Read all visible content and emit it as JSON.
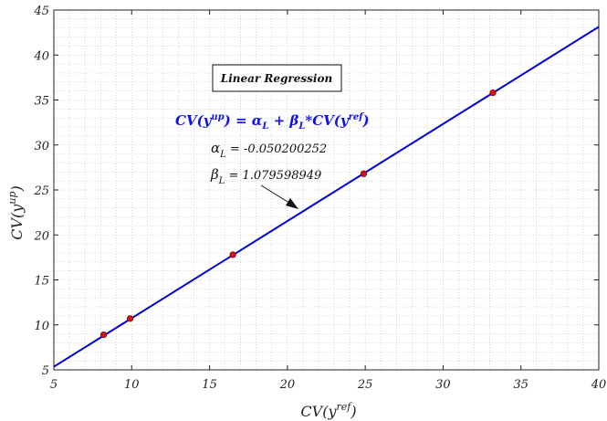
{
  "chart_data": {
    "type": "scatter",
    "title": "",
    "xlabel": {
      "base": "CV(y",
      "sup": "ref",
      "close": ")"
    },
    "ylabel": {
      "base": "CV(y",
      "sup": "up",
      "close": ")"
    },
    "xlim": [
      5,
      40
    ],
    "ylim": [
      5,
      45
    ],
    "xticks": [
      5,
      10,
      15,
      20,
      25,
      30,
      35,
      40
    ],
    "yticks": [
      5,
      10,
      15,
      20,
      25,
      30,
      35,
      40,
      45
    ],
    "grid": "minor-dotted",
    "points": [
      {
        "x": 8.2,
        "y": 8.9
      },
      {
        "x": 9.9,
        "y": 10.7
      },
      {
        "x": 16.5,
        "y": 17.8
      },
      {
        "x": 24.9,
        "y": 26.8
      },
      {
        "x": 33.2,
        "y": 35.8
      }
    ],
    "fit_line": {
      "intercept": -0.050200252,
      "slope": 1.079598949
    },
    "annotations": {
      "box_label": "Linear Regression",
      "equation": {
        "lhs": "CV(y",
        "lhs_sup": "up",
        "mid": ") = ",
        "alpha": "α",
        "alpha_sub": "L",
        "plus": " + ",
        "beta": "β",
        "beta_sub": "L",
        "rhs": "*CV(y",
        "rhs_sup": "ref",
        "end": ")"
      },
      "alpha_line": {
        "symbol": "α",
        "sub": "L",
        "text": " = -0.050200252"
      },
      "beta_line": {
        "symbol": "β",
        "sub": "L",
        "text": " = 1.079598949"
      }
    },
    "colors": {
      "line": "#0000dd",
      "marker": "#dd1111",
      "grid": "#b0b0b0",
      "equation": "#1111ee"
    }
  }
}
